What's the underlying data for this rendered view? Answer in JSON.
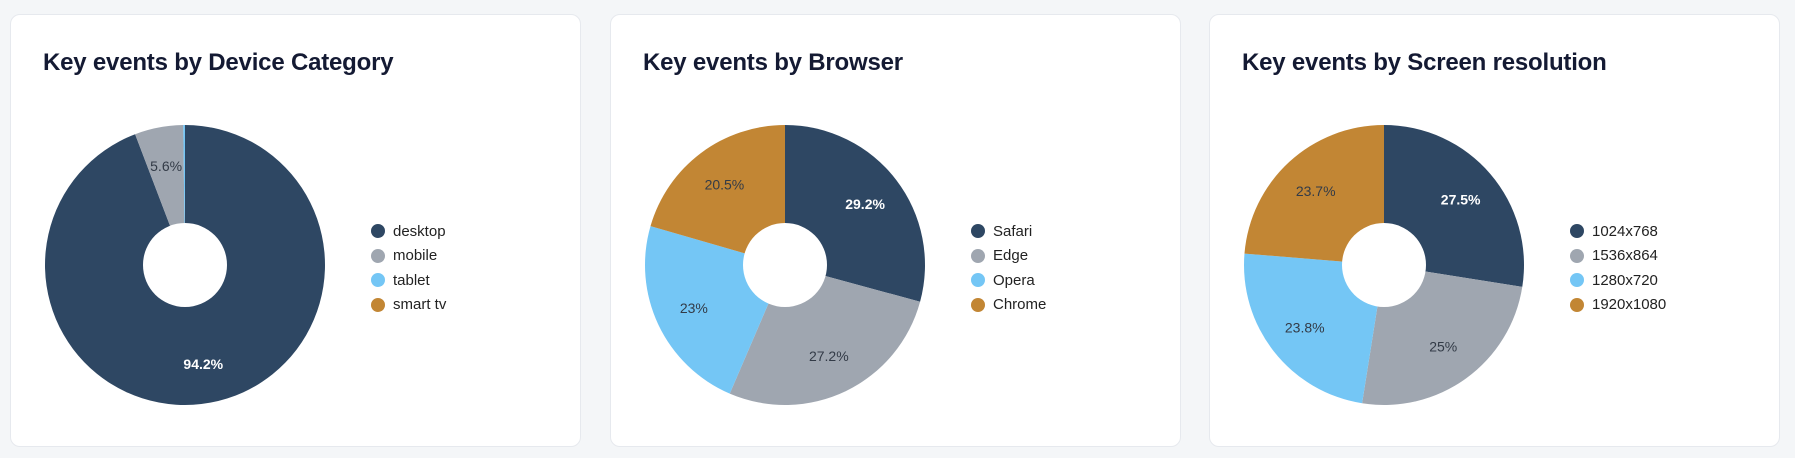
{
  "colors": {
    "navy": "#2e4763",
    "gray": "#9fa6b0",
    "sky": "#74c6f5",
    "ochre": "#c28634"
  },
  "cards": [
    {
      "title": "Key events by Device Category"
    },
    {
      "title": "Key events by Browser"
    },
    {
      "title": "Key events by Screen resolution"
    }
  ],
  "chart_data": [
    {
      "type": "pie",
      "title": "Key events by Device Category",
      "donut": true,
      "legend_position": "right",
      "slices": [
        {
          "label": "desktop",
          "value": 94.2,
          "display": "94.2%",
          "color": "#2e4763",
          "show_label": true
        },
        {
          "label": "mobile",
          "value": 5.6,
          "display": "5.6%",
          "color": "#9fa6b0",
          "show_label": true
        },
        {
          "label": "tablet",
          "value": 0.2,
          "display": "",
          "color": "#74c6f5",
          "show_label": false
        },
        {
          "label": "smart tv",
          "value": 0.0,
          "display": "",
          "color": "#c28634",
          "show_label": false
        }
      ]
    },
    {
      "type": "pie",
      "title": "Key events by Browser",
      "donut": true,
      "legend_position": "right",
      "slices": [
        {
          "label": "Safari",
          "value": 29.2,
          "display": "29.2%",
          "color": "#2e4763",
          "show_label": true
        },
        {
          "label": "Edge",
          "value": 27.2,
          "display": "27.2%",
          "color": "#9fa6b0",
          "show_label": true
        },
        {
          "label": "Opera",
          "value": 23.0,
          "display": "23%",
          "color": "#74c6f5",
          "show_label": true
        },
        {
          "label": "Chrome",
          "value": 20.5,
          "display": "20.5%",
          "color": "#c28634",
          "show_label": true
        }
      ]
    },
    {
      "type": "pie",
      "title": "Key events by Screen resolution",
      "donut": true,
      "legend_position": "right",
      "slices": [
        {
          "label": "1024x768",
          "value": 27.5,
          "display": "27.5%",
          "color": "#2e4763",
          "show_label": true
        },
        {
          "label": "1536x864",
          "value": 25.0,
          "display": "25%",
          "color": "#9fa6b0",
          "show_label": true
        },
        {
          "label": "1280x720",
          "value": 23.8,
          "display": "23.8%",
          "color": "#74c6f5",
          "show_label": true
        },
        {
          "label": "1920x1080",
          "value": 23.7,
          "display": "23.7%",
          "color": "#c28634",
          "show_label": true
        }
      ]
    }
  ]
}
